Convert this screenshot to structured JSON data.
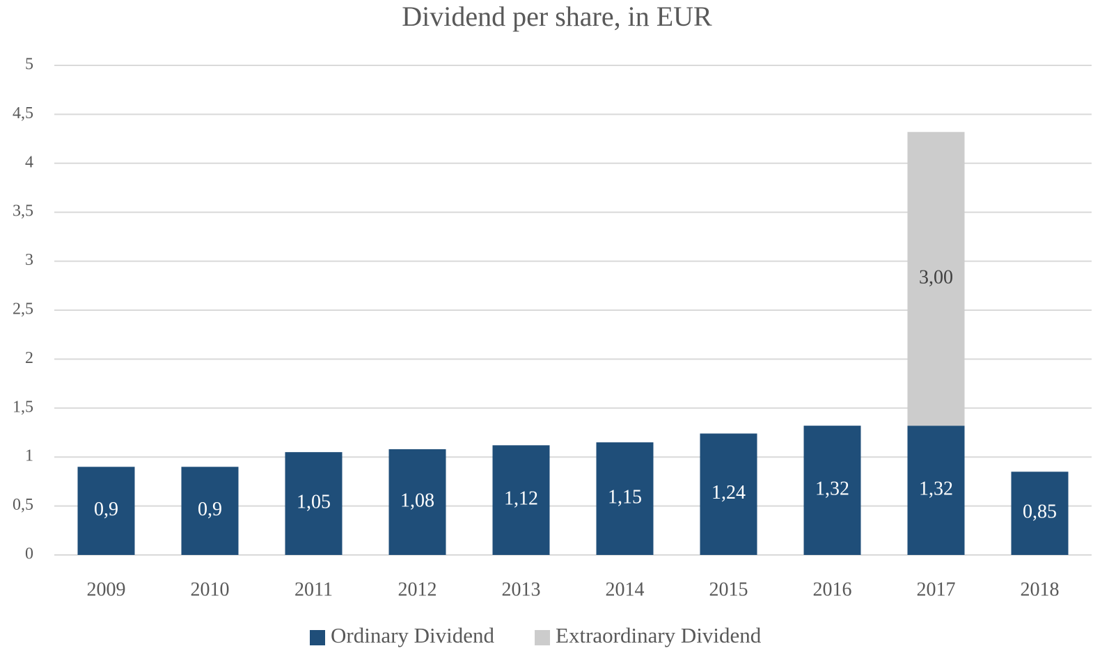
{
  "chart_data": {
    "type": "stacked_bar",
    "title": "Dividend per share, in EUR",
    "categories": [
      "2009",
      "2010",
      "2011",
      "2012",
      "2013",
      "2014",
      "2015",
      "2016",
      "2017",
      "2018"
    ],
    "series": [
      {
        "name": "Ordinary Dividend",
        "color": "#1f4e79",
        "values": [
          0.9,
          0.9,
          1.05,
          1.08,
          1.12,
          1.15,
          1.24,
          1.32,
          1.32,
          0.85
        ],
        "value_labels": [
          "0,9",
          "0,9",
          "1,05",
          "1,08",
          "1,12",
          "1,15",
          "1,24",
          "1,32",
          "1,32",
          "0,85"
        ]
      },
      {
        "name": "Extraordinary Dividend",
        "color": "#cccccc",
        "values": [
          null,
          null,
          null,
          null,
          null,
          null,
          null,
          null,
          3.0,
          null
        ],
        "value_labels": [
          null,
          null,
          null,
          null,
          null,
          null,
          null,
          null,
          "3,00",
          null
        ]
      }
    ],
    "ylim": [
      0,
      5
    ],
    "yticks": [
      0,
      {
        "value": 0.5,
        "label": "0,5"
      },
      1,
      {
        "value": 1.5,
        "label": "1,5"
      },
      2,
      {
        "value": 2.5,
        "label": "2,5"
      },
      3,
      {
        "value": 3.5,
        "label": "3,5"
      },
      4,
      {
        "value": 4.5,
        "label": "4,5"
      },
      5
    ],
    "grid": true,
    "legend": "bottom"
  }
}
